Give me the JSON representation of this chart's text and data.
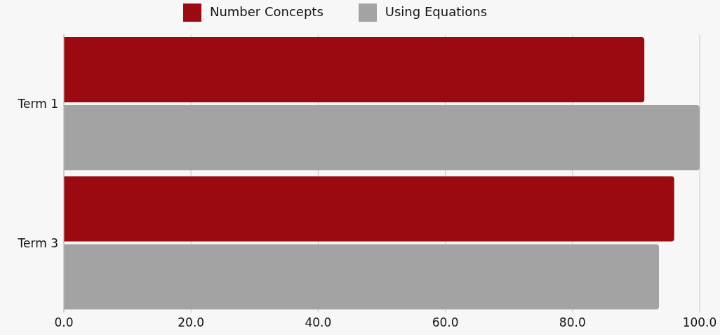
{
  "chart_data": {
    "type": "bar",
    "orientation": "horizontal",
    "categories": [
      "Term 1",
      "Term 3"
    ],
    "series": [
      {
        "name": "Number Concepts",
        "color": "#9b0a10",
        "values": [
          91.3,
          96.0
        ]
      },
      {
        "name": "Using Equations",
        "color": "#a3a3a3",
        "values": [
          100.0,
          93.6
        ]
      }
    ],
    "xlim": [
      0,
      100
    ],
    "xticks": [
      {
        "value": 0,
        "label": "0.0"
      },
      {
        "value": 20,
        "label": "20.0"
      },
      {
        "value": 40,
        "label": "40.0"
      },
      {
        "value": 60,
        "label": "60.0"
      },
      {
        "value": 80,
        "label": "80.0"
      },
      {
        "value": 100,
        "label": "100.0"
      }
    ],
    "grid": "x",
    "legend": "top"
  }
}
